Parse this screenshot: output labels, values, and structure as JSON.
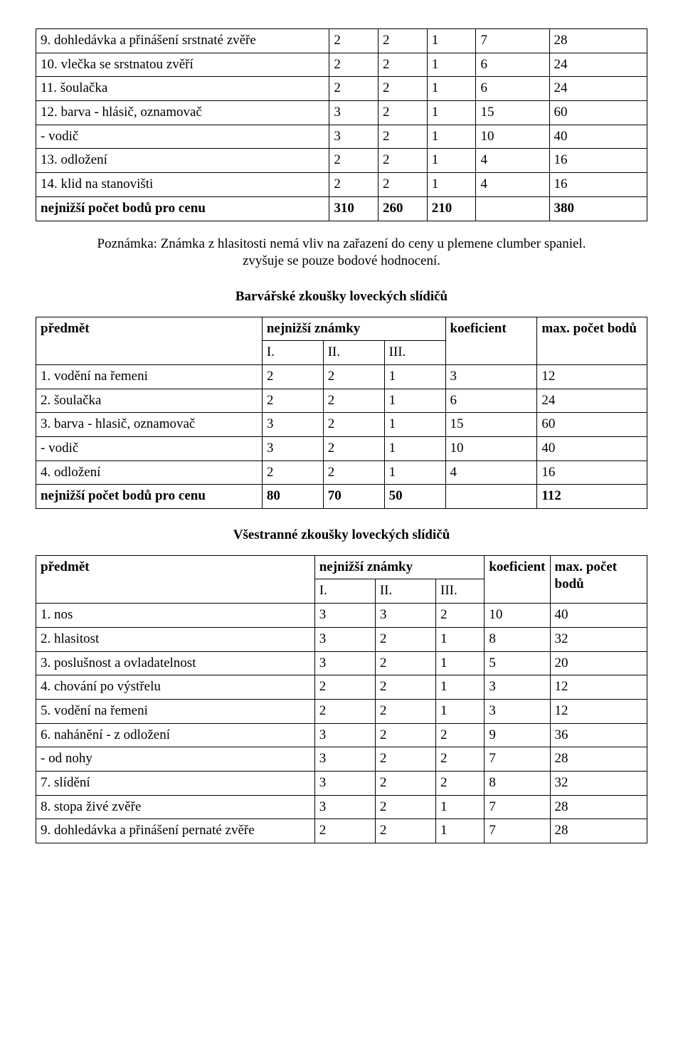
{
  "table1": {
    "rows": [
      [
        "9. dohledávka a přinášení srstnaté zvěře",
        "2",
        "2",
        "1",
        "7",
        "28"
      ],
      [
        "10. vlečka se srstnatou zvěří",
        "2",
        "2",
        "1",
        "6",
        "24"
      ],
      [
        "11. šoulačka",
        "2",
        "2",
        "1",
        "6",
        "24"
      ],
      [
        "12. barva - hlásič, oznamovač",
        "3",
        "2",
        "1",
        "15",
        "60"
      ],
      [
        "- vodič",
        "3",
        "2",
        "1",
        "10",
        "40"
      ],
      [
        "13. odložení",
        "2",
        "2",
        "1",
        "4",
        "16"
      ],
      [
        "14. klid na stanovišti",
        "2",
        "2",
        "1",
        "4",
        "16"
      ]
    ],
    "footer": [
      "nejnižší počet bodů pro cenu",
      "310",
      "260",
      "210",
      "",
      "380"
    ]
  },
  "note": {
    "line1": "Poznámka: Známka z hlasitosti nemá vliv na zařazení do ceny u plemene clumber spaniel.",
    "line2": "zvyšuje se pouze bodové hodnocení."
  },
  "section2": {
    "title": "Barvářské zkoušky loveckých slídičů",
    "header": {
      "c1": "předmět",
      "c2": "nejnižší známky",
      "c3": "koeficient",
      "c4": "max. počet bodů"
    },
    "subheader": [
      "I.",
      "II.",
      "III."
    ],
    "rows": [
      [
        "1. vodění na řemeni",
        "2",
        "2",
        "1",
        "3",
        "12"
      ],
      [
        "2. šoulačka",
        "2",
        "2",
        "1",
        "6",
        "24"
      ],
      [
        "3. barva - hlasič, oznamovač",
        "3",
        "2",
        "1",
        "15",
        "60"
      ],
      [
        "- vodič",
        "3",
        "2",
        "1",
        "10",
        "40"
      ],
      [
        "4. odložení",
        "2",
        "2",
        "1",
        "4",
        "16"
      ]
    ],
    "footer": [
      "nejnižší počet bodů pro cenu",
      "80",
      "70",
      "50",
      "",
      "112"
    ]
  },
  "section3": {
    "title": "Všestranné zkoušky loveckých slídičů",
    "header": {
      "c1": "předmět",
      "c2": "nejnižší známky",
      "c3": "koeficient",
      "c4": "max. počet bodů"
    },
    "subheader": [
      "I.",
      "II.",
      "III."
    ],
    "rows": [
      [
        "1. nos",
        "3",
        "3",
        "2",
        "10",
        "40"
      ],
      [
        "2. hlasitost",
        "3",
        "2",
        "1",
        "8",
        "32"
      ],
      [
        "3. poslušnost a ovladatelnost",
        "3",
        "2",
        "1",
        "5",
        "20"
      ],
      [
        "4. chování po výstřelu",
        "2",
        "2",
        "1",
        "3",
        "12"
      ],
      [
        "5. vodění na řemeni",
        "2",
        "2",
        "1",
        "3",
        "12"
      ],
      [
        "6. nahánění - z odložení",
        "3",
        "2",
        "2",
        "9",
        "36"
      ],
      [
        "- od nohy",
        "3",
        "2",
        "2",
        "7",
        "28"
      ],
      [
        "7. slídění",
        "3",
        "2",
        "2",
        "8",
        "32"
      ],
      [
        "8. stopa živé zvěře",
        "3",
        "2",
        "1",
        "7",
        "28"
      ],
      [
        "9. dohledávka a přinášení pernaté zvěře",
        "2",
        "2",
        "1",
        "7",
        "28"
      ]
    ]
  }
}
